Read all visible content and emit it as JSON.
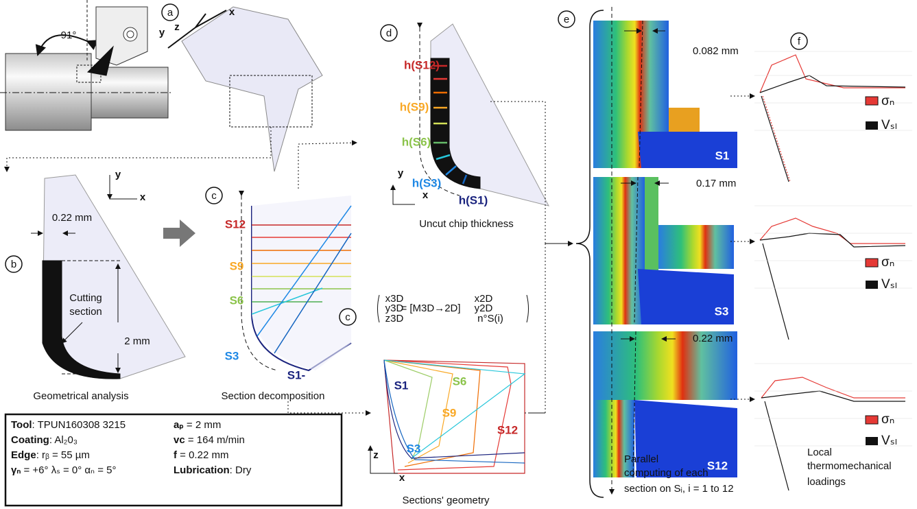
{
  "panels": {
    "a": {
      "letter": "a",
      "angle": "91°",
      "axes": [
        "z",
        "x",
        "y"
      ]
    },
    "b": {
      "letter": "b",
      "axes": [
        "y",
        "x"
      ],
      "width": "0.22 mm",
      "label": [
        "Cutting",
        "section"
      ],
      "height": "2 mm",
      "caption": "Geometrical analysis"
    },
    "c1": {
      "letter": "c",
      "sections": [
        "S12",
        "S9",
        "S6",
        "S3",
        "S1-"
      ],
      "caption": "Section decomposition"
    },
    "c2": {
      "letter": "c",
      "formula": [
        "x3D",
        "y3D",
        "z3D",
        "= [M3D→2D]",
        "x2D",
        "y2D",
        "n°S(i)"
      ],
      "sections": [
        "S1",
        "S6",
        "S9",
        "S3",
        "S12"
      ],
      "axes": [
        "z",
        "x"
      ],
      "caption": "Sections' geometry"
    },
    "d": {
      "letter": "d",
      "thickness": [
        "h(S12)",
        "h(S9)",
        "h(S6)",
        "h(S3)",
        "h(S1)"
      ],
      "axes": [
        "y",
        "x"
      ],
      "caption": "Uncut chip thickness"
    },
    "e": {
      "letter": "e",
      "sections": [
        {
          "name": "S1",
          "offset": "0.082 mm"
        },
        {
          "name": "S3",
          "offset": "0.17 mm"
        },
        {
          "name": "S12",
          "offset": "0.22 mm"
        }
      ],
      "caption": [
        "Parallel",
        "computing of each",
        "section on Sᵢ, i = 1 to 12"
      ]
    },
    "f": {
      "letter": "f",
      "legends": [
        [
          "σₙ",
          "Vₛₗ"
        ],
        [
          "σₙ",
          "Vₛₗ"
        ],
        [
          "σₙ",
          "Vₛₗ"
        ]
      ],
      "caption": [
        "Local",
        "thermomechanical",
        "loadings"
      ]
    }
  },
  "info": {
    "left": [
      {
        "label": "Tool",
        "value": ": TPUN160308 3215"
      },
      {
        "label": "Coating",
        "value": ": Al₂0₃"
      },
      {
        "label": "Edge",
        "value": ": rᵦ = 55 µm"
      },
      {
        "label": "γₙ",
        "value": " = +6° λₛ = 0° αₙ = 5°"
      }
    ],
    "right": [
      {
        "label": "aₚ",
        "value": " = 2 mm"
      },
      {
        "label": "vc",
        "value": " = 164 m/min"
      },
      {
        "label": "f",
        "value": " = 0.22 mm"
      },
      {
        "label": "Lubrication",
        "value": ": Dry"
      }
    ]
  }
}
